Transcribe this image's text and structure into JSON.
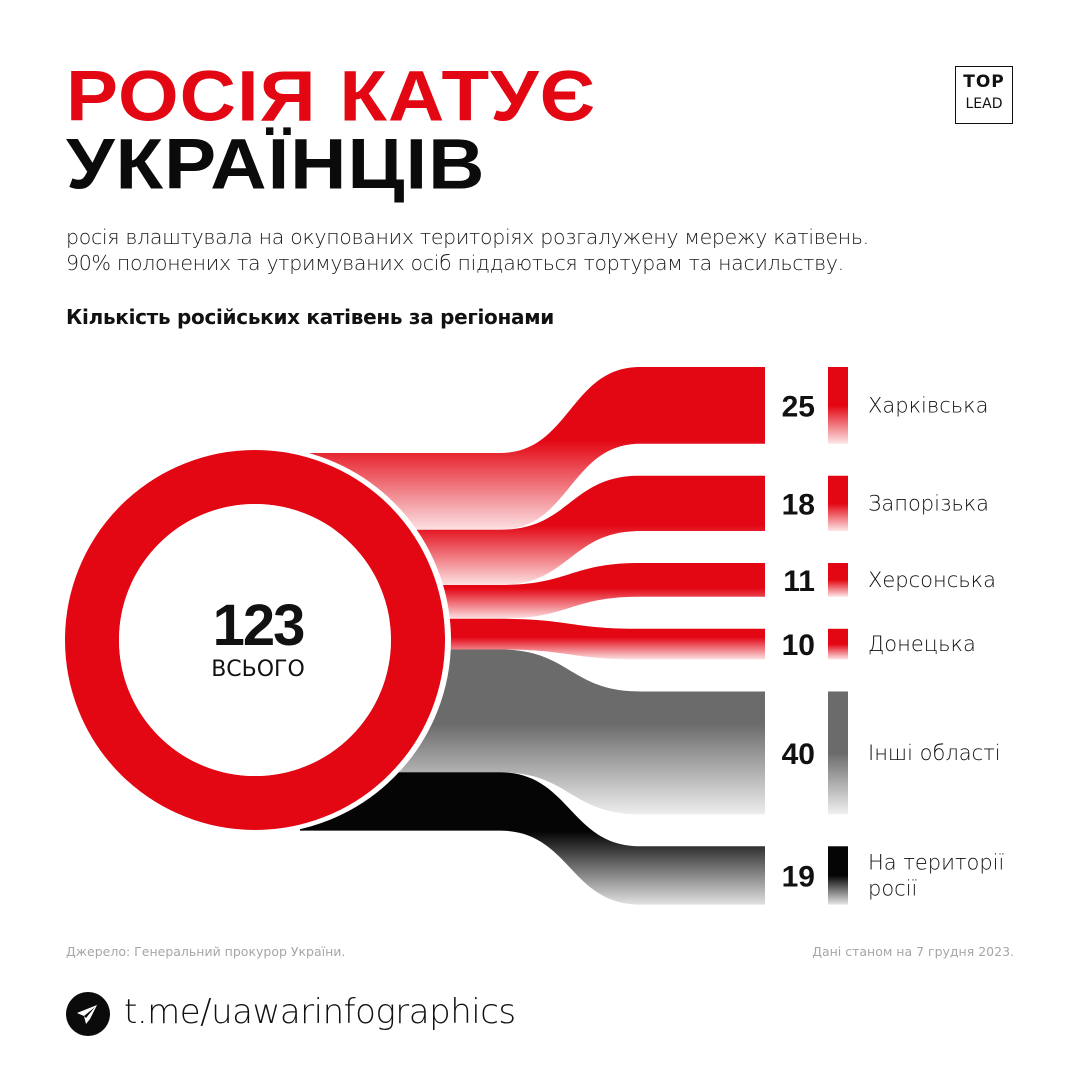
{
  "header": {
    "title_line1": "РОСІЯ КАТУЄ",
    "title_line2": "УКРАЇНЦІВ",
    "logo_top": "TOP",
    "logo_bottom": "LEAD",
    "subtitle_line1": "росія влаштувала на окупованих територіях розгалужену мережу катівень.",
    "subtitle_line2": "90% полонених та утримуваних осіб піддаються тортурам та насильству."
  },
  "chart_data": {
    "type": "sankey",
    "title": "Кількість російських катівень за регіонами",
    "total": 123,
    "total_label": "ВСЬОГО",
    "categories": [
      "Харківська",
      "Запорізька",
      "Херсонська",
      "Донецька",
      "Інші області",
      "На території росії"
    ],
    "values": [
      25,
      18,
      11,
      10,
      40,
      19
    ],
    "colors": [
      "#e30613",
      "#e30613",
      "#e30613",
      "#e30613",
      "#6b6b6b",
      "#050505"
    ]
  },
  "footer": {
    "source": "Джерело: Генеральний прокурор України.",
    "date": "Дані станом на 7 грудня 2023.",
    "telegram": "t.me/uawarinfographics"
  },
  "icons": {
    "telegram": "telegram-icon"
  }
}
